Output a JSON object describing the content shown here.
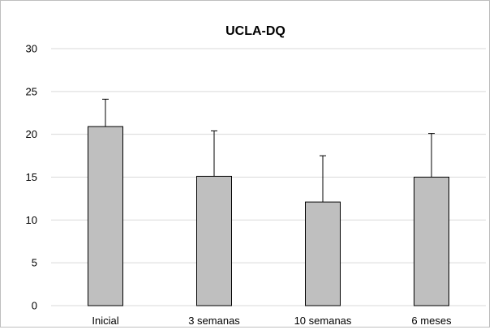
{
  "chart_data": {
    "type": "bar",
    "title": "UCLA-DQ",
    "xlabel": "",
    "ylabel": "",
    "categories": [
      "Inicial",
      "3 semanas",
      "10 semanas",
      "6 meses"
    ],
    "values": [
      20.9,
      15.1,
      12.1,
      15.0
    ],
    "error_plus": [
      3.2,
      5.3,
      5.4,
      5.1
    ],
    "ylim": [
      0,
      30
    ],
    "yticks": [
      0,
      5,
      10,
      15,
      20,
      25,
      30
    ],
    "grid": true,
    "bar_color": "#bfbfbf",
    "gridline_color": "#d9d9d9"
  }
}
